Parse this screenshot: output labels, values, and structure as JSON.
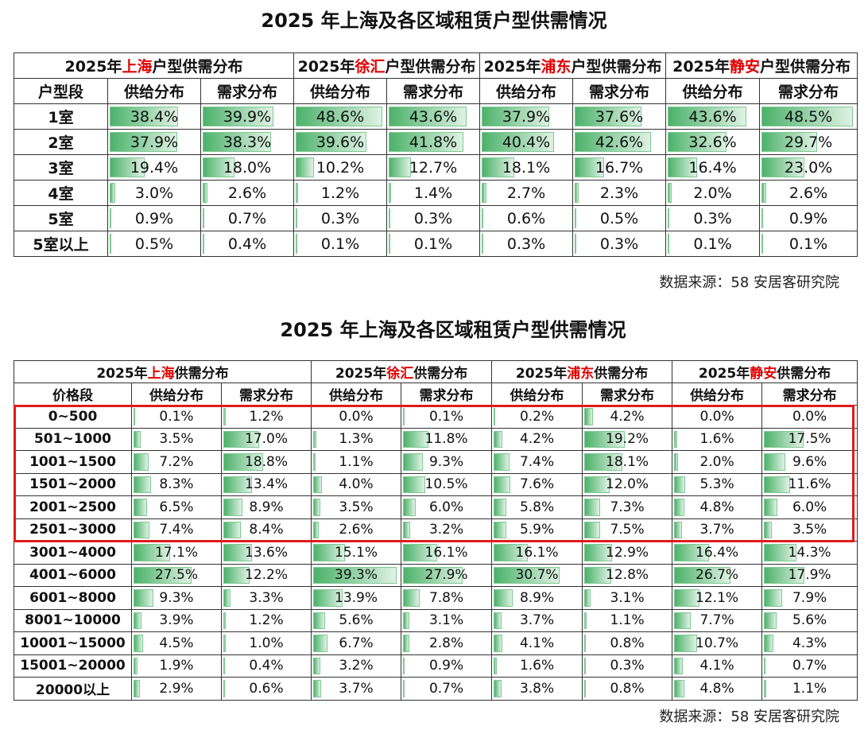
{
  "title1": "2025 年上海及各区域租赁户型供需情况",
  "table1": {
    "groups": [
      {
        "pre": "2025年",
        "region": "上海",
        "post": "户型供需分布"
      },
      {
        "pre": "2025年",
        "region": "徐汇",
        "post": "户型供需分布"
      },
      {
        "pre": "2025年",
        "region": "浦东",
        "post": "户型供需分布"
      },
      {
        "pre": "2025年",
        "region": "静安",
        "post": "户型供需分布"
      }
    ],
    "corner": "户型段",
    "subheaders": [
      "供给分布",
      "需求分布"
    ],
    "rows": [
      {
        "label": "1室",
        "values": [
          38.4,
          39.9,
          48.6,
          43.6,
          37.9,
          37.6,
          43.6,
          48.5
        ],
        "value_labels": [
          "38.4%",
          "39.9%",
          "48.6%",
          "43.6%",
          "37.9%",
          "37.6%",
          "43.6%",
          "48.5%"
        ]
      },
      {
        "label": "2室",
        "values": [
          37.9,
          38.3,
          39.6,
          41.8,
          40.4,
          42.6,
          32.6,
          29.7
        ],
        "value_labels": [
          "37.9%",
          "38.3%",
          "39.6%",
          "41.8%",
          "40.4%",
          "42.6%",
          "32.6%",
          "29.7%"
        ]
      },
      {
        "label": "3室",
        "values": [
          19.4,
          18.0,
          10.2,
          12.7,
          18.1,
          16.7,
          16.4,
          23.0
        ],
        "value_labels": [
          "19.4%",
          "18.0%",
          "10.2%",
          "12.7%",
          "18.1%",
          "16.7%",
          "16.4%",
          "23.0%"
        ]
      },
      {
        "label": "4室",
        "values": [
          3.0,
          2.6,
          1.2,
          1.4,
          2.7,
          2.3,
          2.0,
          2.6
        ],
        "value_labels": [
          "3.0%",
          "2.6%",
          "1.2%",
          "1.4%",
          "2.7%",
          "2.3%",
          "2.0%",
          "2.6%"
        ]
      },
      {
        "label": "5室",
        "values": [
          0.9,
          0.7,
          0.3,
          0.3,
          0.6,
          0.5,
          0.3,
          0.9
        ],
        "value_labels": [
          "0.9%",
          "0.7%",
          "0.3%",
          "0.3%",
          "0.6%",
          "0.5%",
          "0.3%",
          "0.9%"
        ]
      },
      {
        "label": "5室以上",
        "values": [
          0.5,
          0.4,
          0.1,
          0.1,
          0.3,
          0.3,
          0.1,
          0.1
        ],
        "value_labels": [
          "0.5%",
          "0.4%",
          "0.1%",
          "0.1%",
          "0.3%",
          "0.3%",
          "0.1%",
          "0.1%"
        ]
      }
    ]
  },
  "source1": "数据来源：58 安居客研究院",
  "title2": "2025 年上海及各区域租赁户型供需情况",
  "table2": {
    "groups": [
      {
        "pre": "2025年",
        "region": "上海",
        "post": "供需分布"
      },
      {
        "pre": "2025年",
        "region": "徐汇",
        "post": "供需分布"
      },
      {
        "pre": "2025年",
        "region": "浦东",
        "post": "供需分布"
      },
      {
        "pre": "2025年",
        "region": "静安",
        "post": "供需分布"
      }
    ],
    "corner": "价格段",
    "subheaders": [
      "供给分布",
      "需求分布"
    ],
    "rows": [
      {
        "label": "0~500",
        "values": [
          0.1,
          1.2,
          0.0,
          0.1,
          0.2,
          4.2,
          0.0,
          0.0
        ],
        "value_labels": [
          "0.1%",
          "1.2%",
          "0.0%",
          "0.1%",
          "0.2%",
          "4.2%",
          "0.0%",
          "0.0%"
        ]
      },
      {
        "label": "501~1000",
        "values": [
          3.5,
          17.0,
          1.3,
          11.8,
          4.2,
          19.2,
          1.6,
          17.5
        ],
        "value_labels": [
          "3.5%",
          "17.0%",
          "1.3%",
          "11.8%",
          "4.2%",
          "19.2%",
          "1.6%",
          "17.5%"
        ]
      },
      {
        "label": "1001~1500",
        "values": [
          7.2,
          18.8,
          1.1,
          9.3,
          7.4,
          18.1,
          2.0,
          9.6
        ],
        "value_labels": [
          "7.2%",
          "18.8%",
          "1.1%",
          "9.3%",
          "7.4%",
          "18.1%",
          "2.0%",
          "9.6%"
        ]
      },
      {
        "label": "1501~2000",
        "values": [
          8.3,
          13.4,
          4.0,
          10.5,
          7.6,
          12.0,
          5.3,
          11.6
        ],
        "value_labels": [
          "8.3%",
          "13.4%",
          "4.0%",
          "10.5%",
          "7.6%",
          "12.0%",
          "5.3%",
          "11.6%"
        ]
      },
      {
        "label": "2001~2500",
        "values": [
          6.5,
          8.9,
          3.5,
          6.0,
          5.8,
          7.3,
          4.8,
          6.0
        ],
        "value_labels": [
          "6.5%",
          "8.9%",
          "3.5%",
          "6.0%",
          "5.8%",
          "7.3%",
          "4.8%",
          "6.0%"
        ]
      },
      {
        "label": "2501~3000",
        "values": [
          7.4,
          8.4,
          2.6,
          3.2,
          5.9,
          7.5,
          3.7,
          3.5
        ],
        "value_labels": [
          "7.4%",
          "8.4%",
          "2.6%",
          "3.2%",
          "5.9%",
          "7.5%",
          "3.7%",
          "3.5%"
        ]
      },
      {
        "label": "3001~4000",
        "values": [
          17.1,
          13.6,
          15.1,
          16.1,
          16.1,
          12.9,
          16.4,
          14.3
        ],
        "value_labels": [
          "17.1%",
          "13.6%",
          "15.1%",
          "16.1%",
          "16.1%",
          "12.9%",
          "16.4%",
          "14.3%"
        ]
      },
      {
        "label": "4001~6000",
        "values": [
          27.5,
          12.2,
          39.3,
          27.9,
          30.7,
          12.8,
          26.7,
          17.9
        ],
        "value_labels": [
          "27.5%",
          "12.2%",
          "39.3%",
          "27.9%",
          "30.7%",
          "12.8%",
          "26.7%",
          "17.9%"
        ]
      },
      {
        "label": "6001~8000",
        "values": [
          9.3,
          3.3,
          13.9,
          7.8,
          8.9,
          3.1,
          12.1,
          7.9
        ],
        "value_labels": [
          "9.3%",
          "3.3%",
          "13.9%",
          "7.8%",
          "8.9%",
          "3.1%",
          "12.1%",
          "7.9%"
        ]
      },
      {
        "label": "8001~10000",
        "values": [
          3.9,
          1.2,
          5.6,
          3.1,
          3.7,
          1.1,
          7.7,
          5.6
        ],
        "value_labels": [
          "3.9%",
          "1.2%",
          "5.6%",
          "3.1%",
          "3.7%",
          "1.1%",
          "7.7%",
          "5.6%"
        ]
      },
      {
        "label": "10001~15000",
        "values": [
          4.5,
          1.0,
          6.7,
          2.8,
          4.1,
          0.8,
          10.7,
          4.3
        ],
        "value_labels": [
          "4.5%",
          "1.0%",
          "6.7%",
          "2.8%",
          "4.1%",
          "0.8%",
          "10.7%",
          "4.3%"
        ]
      },
      {
        "label": "15001~20000",
        "values": [
          1.9,
          0.4,
          3.2,
          0.9,
          1.6,
          0.3,
          4.1,
          0.7
        ],
        "value_labels": [
          "1.9%",
          "0.4%",
          "3.2%",
          "0.9%",
          "1.6%",
          "0.3%",
          "4.1%",
          "0.7%"
        ]
      },
      {
        "label": "20000以上",
        "values": [
          2.9,
          0.6,
          3.7,
          0.7,
          3.8,
          0.8,
          4.8,
          1.1
        ],
        "value_labels": [
          "2.9%",
          "0.6%",
          "3.7%",
          "0.7%",
          "3.8%",
          "0.8%",
          "4.8%",
          "1.1%"
        ]
      }
    ]
  },
  "source2": "数据来源：58 安居客研究院"
}
